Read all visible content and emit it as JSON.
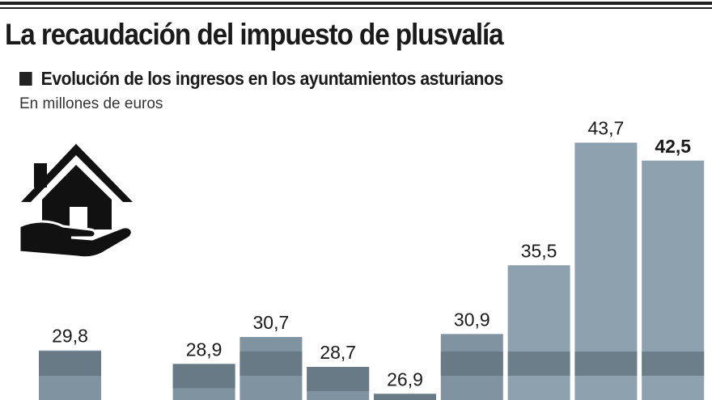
{
  "header": {
    "title": "La recaudación del impuesto de plusvalía",
    "subtitle": "Evolución de los ingresos en los ayuntamientos asturianos",
    "unit": "En millones de euros"
  },
  "colors": {
    "bar": "#7f93a1",
    "bar_dark": "#5d6f7b",
    "text": "#1a1a1a"
  },
  "icons": {
    "illustration": "house-in-hand-icon"
  },
  "chart_data": {
    "type": "bar",
    "title": "La recaudación del impuesto de plusvalía",
    "subtitle": "Evolución de los ingresos en los ayuntamientos asturianos",
    "ylabel": "En millones de euros",
    "xlabel": "",
    "values": [
      29.8,
      null,
      28.9,
      30.7,
      28.7,
      26.9,
      30.9,
      35.5,
      43.7,
      42.5
    ],
    "labels": [
      "29,8",
      "",
      "28,9",
      "30,7",
      "28,7",
      "26,9",
      "30,9",
      "35,5",
      "43,7",
      "42,5"
    ],
    "highlight_last": true,
    "grid": false
  }
}
